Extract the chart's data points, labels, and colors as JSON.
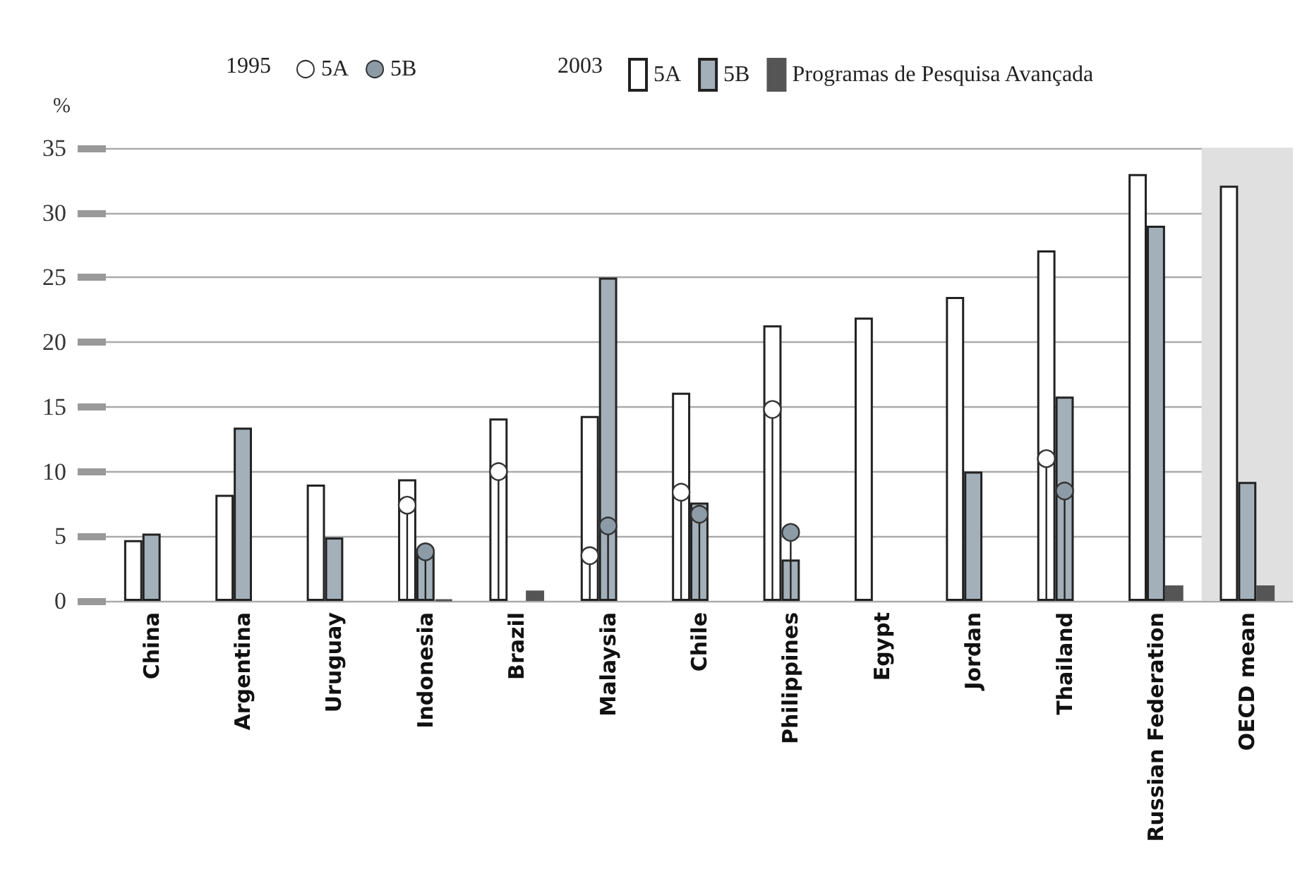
{
  "chart_data": {
    "type": "bar",
    "ylabel": "%",
    "categories": [
      "China",
      "Argentina",
      "Uruguay",
      "Indonesia",
      "Brazil",
      "Malaysia",
      "Chile",
      "Philippines",
      "Egypt",
      "Jordan",
      "Thailand",
      "Russian Federation",
      "OECD mean"
    ],
    "series": [
      {
        "name": "5A",
        "color": "#ffffff",
        "values": [
          4.7,
          8.2,
          9.0,
          9.4,
          14.1,
          14.3,
          16.1,
          21.3,
          21.9,
          23.5,
          27.1,
          33.0,
          32.1
        ]
      },
      {
        "name": "5B",
        "color": "#a3b0ba",
        "values": [
          5.2,
          13.4,
          4.9,
          3.8,
          null,
          25.0,
          7.6,
          3.2,
          null,
          10.0,
          15.8,
          29.0,
          9.2
        ]
      },
      {
        "name": "Programas de Pesquisa Avançada",
        "color": "#555555",
        "values": [
          null,
          null,
          null,
          0.1,
          0.8,
          null,
          null,
          null,
          null,
          null,
          null,
          1.2,
          1.2
        ]
      },
      {
        "type": "lollipop",
        "name": "5A",
        "color": "#ffffff",
        "values": [
          null,
          null,
          null,
          7.4,
          10.0,
          3.5,
          8.4,
          14.8,
          null,
          null,
          11.0,
          null,
          null
        ]
      },
      {
        "type": "lollipop",
        "name": "5B",
        "color": "#8c9ba6",
        "values": [
          null,
          null,
          null,
          3.8,
          null,
          5.8,
          6.7,
          5.3,
          null,
          null,
          8.5,
          null,
          null
        ]
      }
    ],
    "annotations": [
      "1995",
      "2003"
    ],
    "bands": [
      {
        "axis": "x",
        "from": "OECD mean",
        "to": "OECD mean",
        "color": "#e0e0e0"
      }
    ],
    "ylim": [
      0,
      35
    ],
    "yticks": [
      0,
      5,
      10,
      15,
      20,
      25,
      30,
      35
    ],
    "grid": "y",
    "legend": "top"
  }
}
